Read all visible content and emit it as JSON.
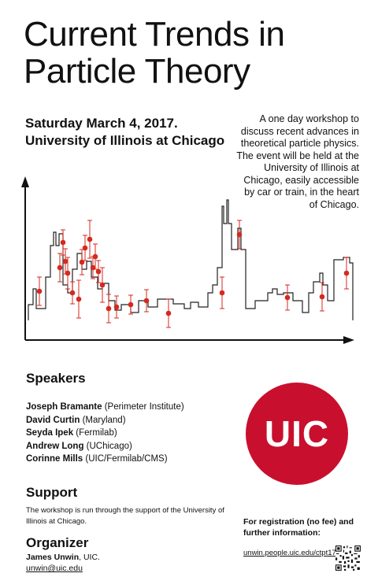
{
  "poster": {
    "title_line1": "Current Trends in",
    "title_line2": "Particle Theory",
    "date": "Saturday March 4, 2017.",
    "venue": "University of Illinois at Chicago",
    "description": "A one day workshop to discuss recent advances in theoretical particle physics. The event will be held at the University of Illinois at Chicago, easily accessible by car or train, in the heart of Chicago."
  },
  "speakers": {
    "heading": "Speakers",
    "items": [
      {
        "name": "Joseph Bramante",
        "affil": " (Perimeter Institute)"
      },
      {
        "name": "David Curtin",
        "affil": " (Maryland)"
      },
      {
        "name": "Seyda Ipek",
        "affil": " (Fermilab)"
      },
      {
        "name": "Andrew Long",
        "affil": " (UChicago)"
      },
      {
        "name": "Corinne Mills",
        "affil": " (UIC/Fermilab/CMS)"
      }
    ]
  },
  "support": {
    "heading": "Support",
    "text": "The workshop is run through the support of the University of Illinois at Chicago."
  },
  "organizer": {
    "heading": "Organizer",
    "name": "James Unwin",
    "affil": ", UIC.",
    "email": "unwin@uic.edu"
  },
  "logo": {
    "text": "UIC",
    "color": "#c8102e"
  },
  "registration": {
    "text": "For registration (no fee) and further information:",
    "url": "unwin.people.uic.edu/ctpt17.html"
  },
  "colors": {
    "points": "#d42a20",
    "ink": "#111111"
  }
}
